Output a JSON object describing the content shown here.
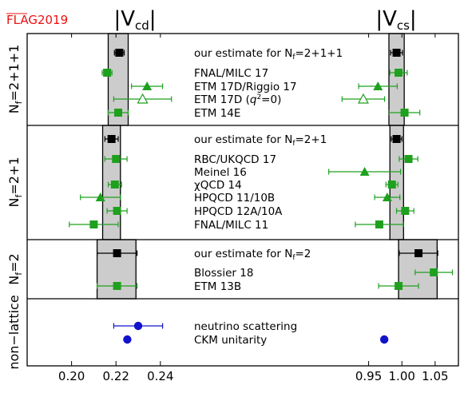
{
  "chart_data": {
    "type": "scatter",
    "tag": "FLAG2019",
    "columns": [
      {
        "title": "|V",
        "sub": "cd",
        "xlim": [
          0.18,
          0.262
        ],
        "ticks": [
          0.2,
          0.22,
          0.24
        ],
        "tick_labels": [
          "0.20",
          "0.22",
          "0.24"
        ]
      },
      {
        "title": "|V",
        "sub": "cs",
        "xlim": [
          0.84,
          1.085
        ],
        "ticks": [
          0.95,
          1.0,
          1.05
        ],
        "tick_labels": [
          "0.95",
          "1.00",
          "1.05"
        ]
      }
    ],
    "panels": [
      {
        "label": "N_f=2+1+1",
        "band": {
          "cd": [
            0.2165,
            0.2255
          ],
          "cs": [
            0.9805,
            1.0035
          ]
        },
        "rows": [
          {
            "label": "our estimate for N_f=2+1+1",
            "estimate": true,
            "cd": {
              "v": 0.2215,
              "e": 0.0022
            },
            "cs": {
              "v": 0.992,
              "e": 0.009
            }
          },
          {
            "label": "FNAL/MILC 17",
            "marker": "square",
            "cd": {
              "v": 0.216,
              "e": 0.0022
            },
            "cs": {
              "v": 0.995,
              "e": 0.013
            }
          },
          {
            "label": "ETM 17D/Riggio 17",
            "marker": "triangle",
            "cd": {
              "v": 0.234,
              "e": 0.007
            },
            "cs": {
              "v": 0.964,
              "e": 0.029
            }
          },
          {
            "label": "ETM 17D (q²=0)",
            "marker": "open-triangle",
            "cd": {
              "v": 0.232,
              "e": 0.013
            },
            "cs": {
              "v": 0.942,
              "e": 0.032
            }
          },
          {
            "label": "ETM 14E",
            "marker": "square",
            "cd": {
              "v": 0.221,
              "e": 0.0045
            },
            "cs": {
              "v": 1.004,
              "e": 0.023
            }
          }
        ]
      },
      {
        "label": "N_f=2+1",
        "band": {
          "cd": [
            0.214,
            0.222
          ],
          "cs": [
            0.982,
            1.0025
          ]
        },
        "rows": [
          {
            "label": "our estimate for N_f=2+1",
            "estimate": true,
            "cd": {
              "v": 0.218,
              "e": 0.003
            },
            "cs": {
              "v": 0.992,
              "e": 0.008
            }
          },
          {
            "label": "RBC/UKQCD 17",
            "marker": "square",
            "cd": {
              "v": 0.22,
              "e": 0.005
            },
            "cs": {
              "v": 1.01,
              "e": 0.014
            }
          },
          {
            "label": "Meinel 16",
            "marker": "triangle",
            "cd": null,
            "cs": {
              "v": 0.944,
              "e": 0.054
            }
          },
          {
            "label": "χQCD 14",
            "marker": "square",
            "cd": {
              "v": 0.2195,
              "e": 0.003
            },
            "cs": {
              "v": 0.985,
              "e": 0.009
            }
          },
          {
            "label": "HPQCD 11/10B",
            "marker": "triangle",
            "cd": {
              "v": 0.213,
              "e": 0.009
            },
            "cs": {
              "v": 0.978,
              "e": 0.019
            }
          },
          {
            "label": "HPQCD 12A/10A",
            "marker": "square",
            "cd": {
              "v": 0.2205,
              "e": 0.0045
            },
            "cs": {
              "v": 1.005,
              "e": 0.013
            }
          },
          {
            "label": "FNAL/MILC 11",
            "marker": "square",
            "cd": {
              "v": 0.21,
              "e": 0.011
            },
            "cs": {
              "v": 0.966,
              "e": 0.036
            }
          }
        ]
      },
      {
        "label": "N_f=2",
        "band": {
          "cd": [
            0.2115,
            0.229
          ],
          "cs": [
            0.995,
            1.053
          ]
        },
        "rows": [
          {
            "label": "our estimate for N_f=2",
            "estimate": true,
            "cd": {
              "v": 0.2205,
              "e": 0.009
            },
            "cs": {
              "v": 1.025,
              "e": 0.029
            }
          },
          {
            "label": "Blossier 18",
            "marker": "square",
            "cd": null,
            "cs": {
              "v": 1.048,
              "e": 0.028
            }
          },
          {
            "label": "ETM 13B",
            "marker": "square",
            "cd": {
              "v": 0.2205,
              "e": 0.009
            },
            "cs": {
              "v": 0.995,
              "e": 0.03
            }
          }
        ]
      },
      {
        "label": "non−lattice",
        "band": null,
        "rows": [
          {
            "label": "neutrino scattering",
            "marker": "circle",
            "cd": {
              "v": 0.23,
              "e": 0.011
            },
            "cs": null
          },
          {
            "label": "CKM unitarity",
            "marker": "circle",
            "cd": {
              "v": 0.2251,
              "e": 0.0
            },
            "cs": {
              "v": 0.9735,
              "e": 0.0
            }
          }
        ]
      }
    ],
    "colors": {
      "lattice": "#1fa01f",
      "estimate": "#000000",
      "nonlattice": "#1212cc",
      "band": "#cccccc",
      "tag": "#ee1111"
    }
  }
}
